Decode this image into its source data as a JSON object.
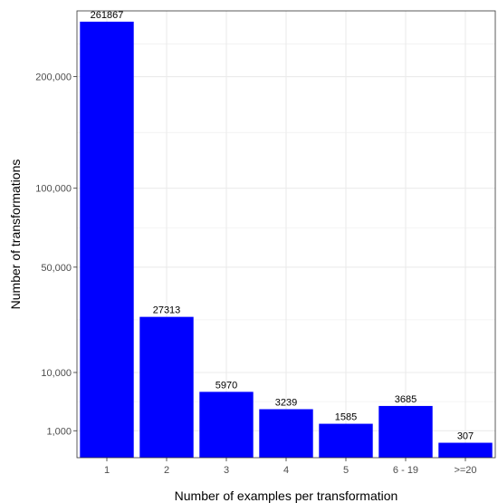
{
  "chart_data": {
    "type": "bar",
    "categories": [
      "1",
      "2",
      "3",
      "4",
      "5",
      "6 - 19",
      ">=20"
    ],
    "values": [
      261867,
      27313,
      5970,
      3239,
      1585,
      3685,
      307
    ],
    "data_labels": [
      "261867",
      "27313",
      "5970",
      "3239",
      "1585",
      "3685",
      "307"
    ],
    "xlabel": "Number of examples per transformation",
    "ylabel": "Number of transformations",
    "y_scale": "sqrt",
    "ylim": [
      0,
      275000
    ],
    "y_ticks": [
      {
        "value": 1000,
        "label": "1,000"
      },
      {
        "value": 10000,
        "label": "10,000"
      },
      {
        "value": 50000,
        "label": "50,000"
      },
      {
        "value": 100000,
        "label": "100,000"
      },
      {
        "value": 200000,
        "label": "200,000"
      }
    ],
    "grid": true,
    "bar_color": "#0000ff",
    "panel_border_color": "#333333",
    "grid_color": "#ebebeb"
  }
}
